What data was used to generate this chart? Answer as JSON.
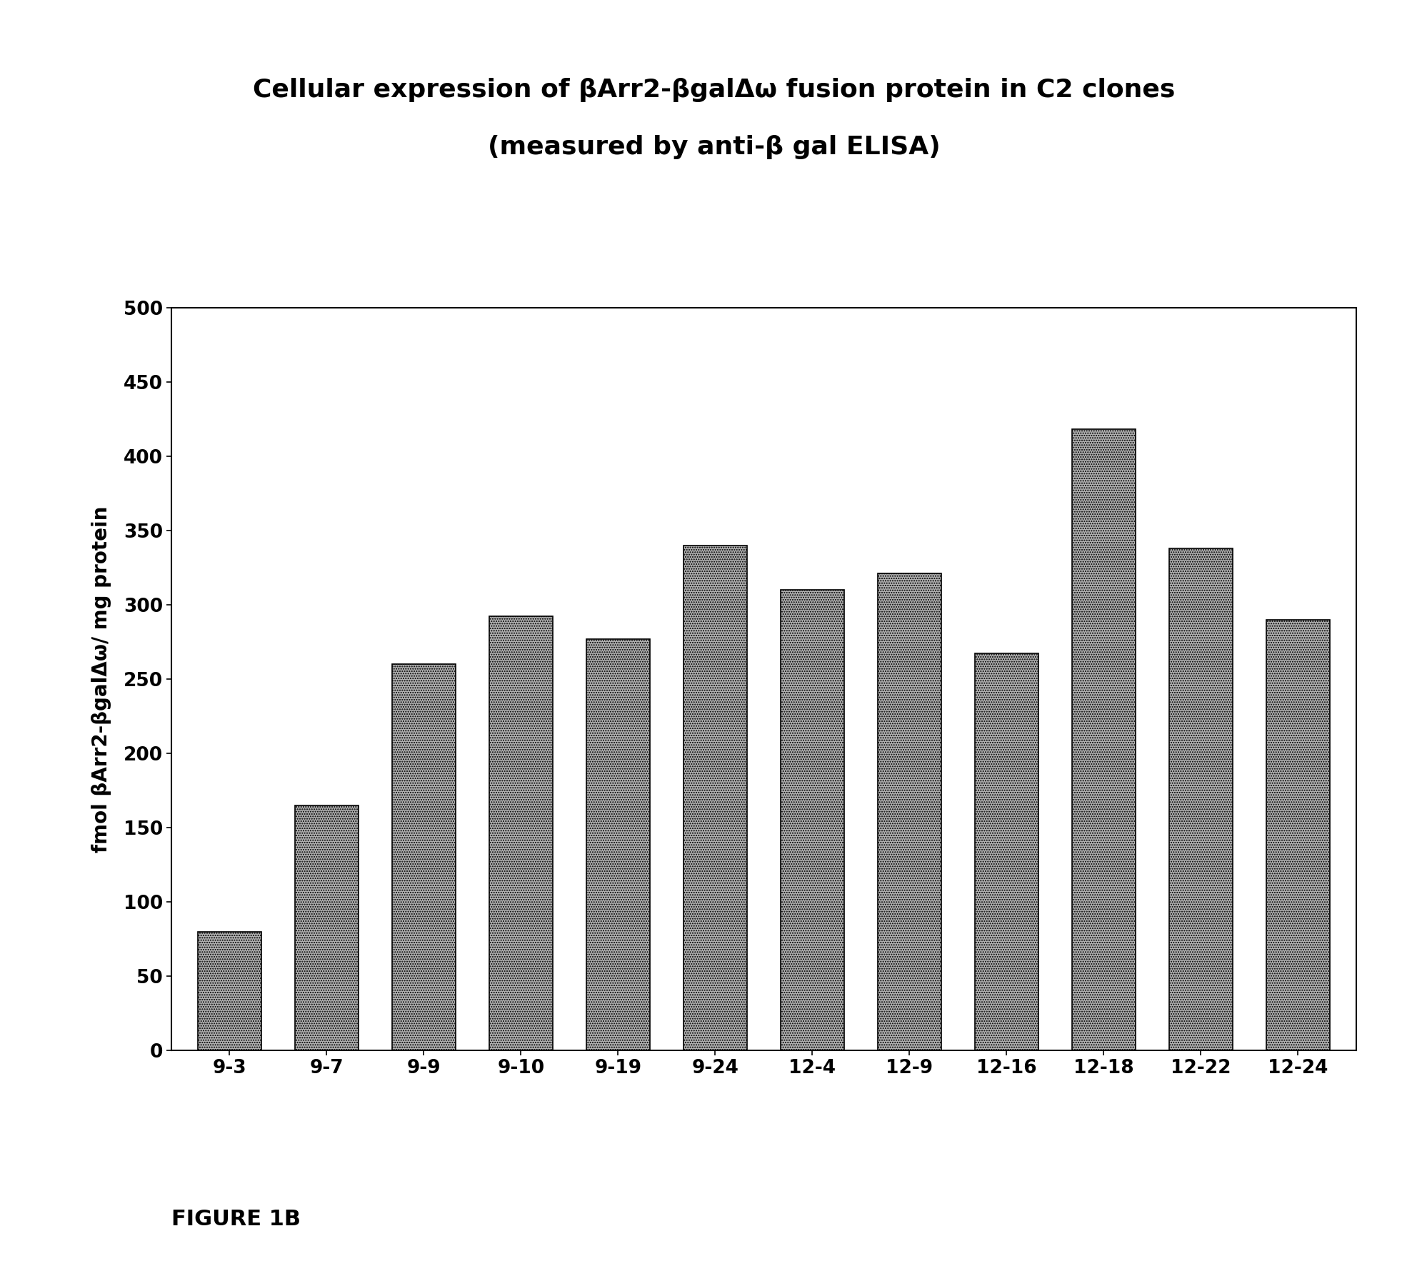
{
  "title_line1": "Cellular expression of βArr2-βgalΔω fusion protein in C2 clones",
  "title_line2": "(measured by anti-β gal ELISA)",
  "categories": [
    "9-3",
    "9-7",
    "9-9",
    "9-10",
    "9-19",
    "9-24",
    "12-4",
    "12-9",
    "12-16",
    "12-18",
    "12-22",
    "12-24"
  ],
  "values": [
    80,
    165,
    260,
    292,
    277,
    340,
    310,
    321,
    267,
    418,
    338,
    290
  ],
  "ylabel": "fmol βArr2-βgalΔω/ mg protein",
  "ylim": [
    0,
    500
  ],
  "yticks": [
    0,
    50,
    100,
    150,
    200,
    250,
    300,
    350,
    400,
    450,
    500
  ],
  "figure_label": "FIGURE 1B",
  "bar_facecolor": "#b0b0b0",
  "bar_edgecolor": "#000000",
  "background_color": "#ffffff",
  "hatch_pattern": ".....",
  "title_fontsize": 26,
  "axis_fontsize": 20,
  "tick_fontsize": 19,
  "figure_label_fontsize": 22,
  "bar_width": 0.65
}
